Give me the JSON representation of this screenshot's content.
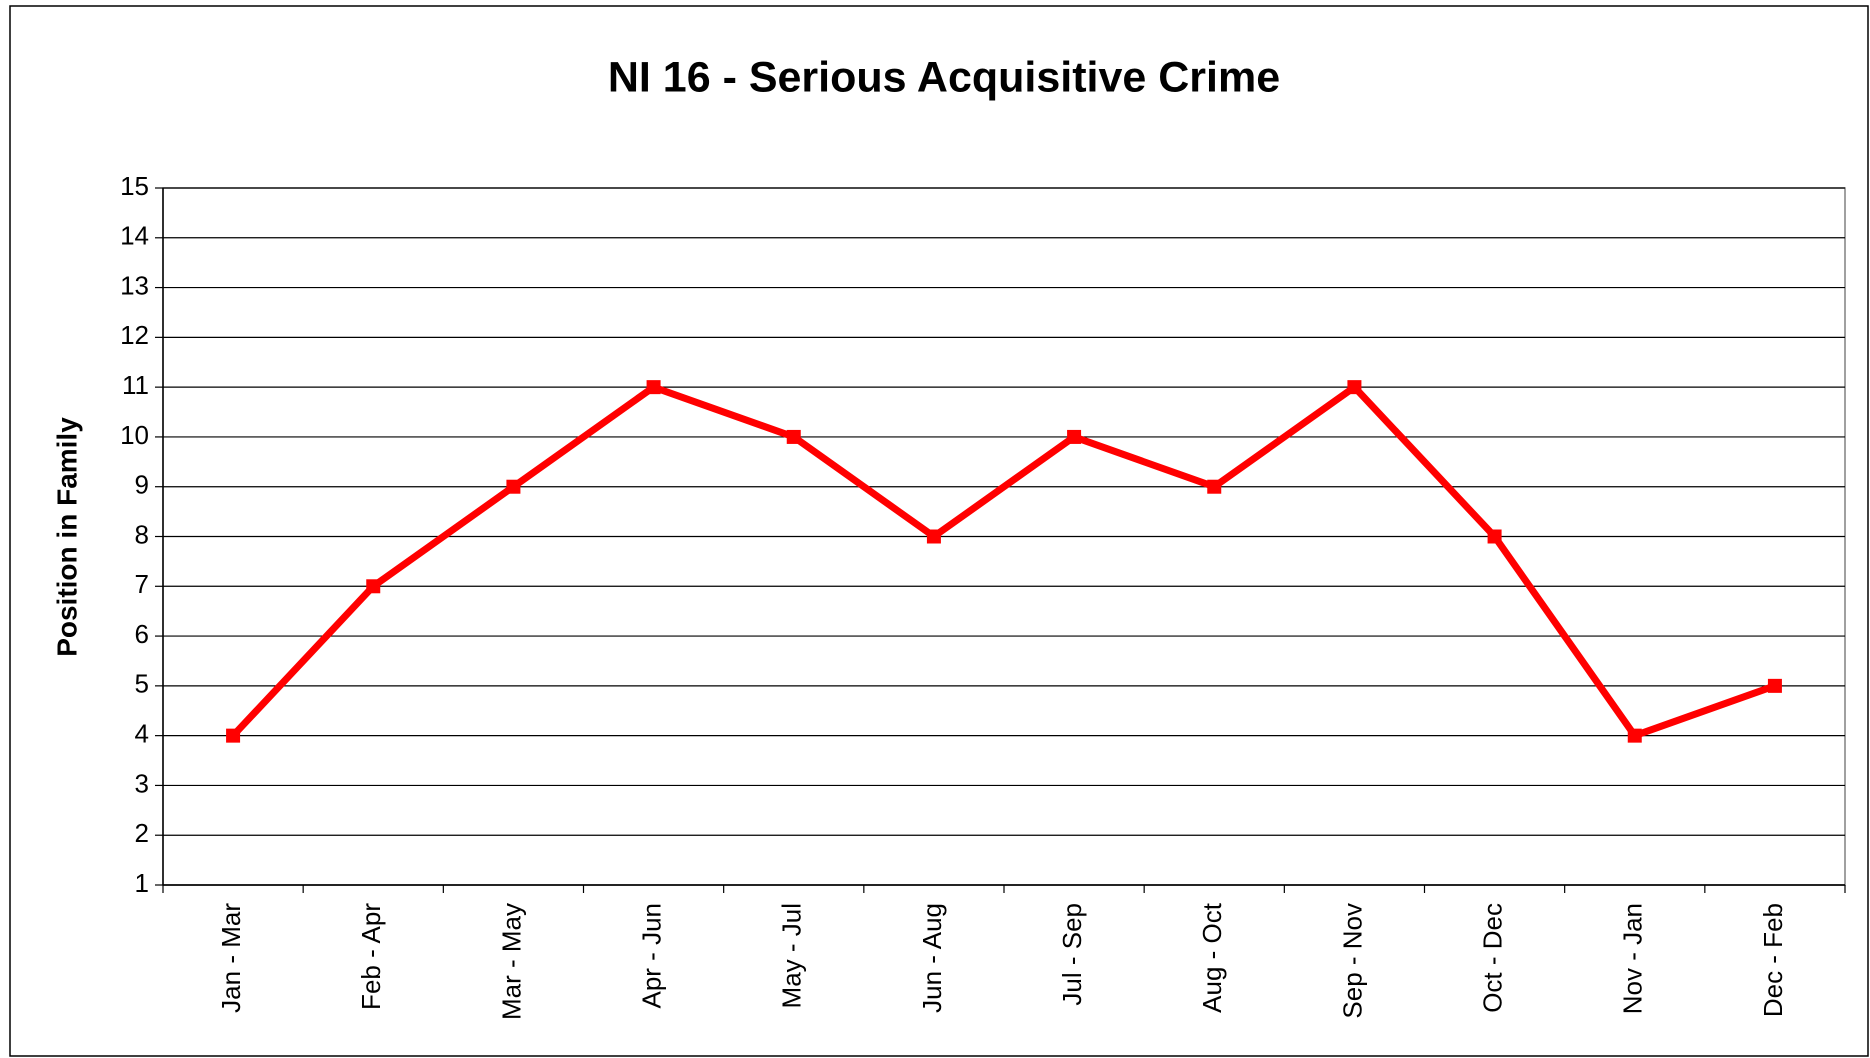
{
  "chart_data": {
    "type": "line",
    "title": "NI 16 - Serious Acquisitive Crime",
    "y_label": "Position in Family",
    "categories": [
      "Jan - Mar",
      "Feb - Apr",
      "Mar - May",
      "Apr - Jun",
      "May - Jul",
      "Jun - Aug",
      "Jul - Sep",
      "Aug - Oct",
      "Sep - Nov",
      "Oct - Dec",
      "Nov - Jan",
      "Dec - Feb"
    ],
    "values": [
      4,
      7,
      9,
      11,
      10,
      8,
      10,
      9,
      11,
      8,
      4,
      5
    ],
    "color": "#ff0000",
    "ylim": [
      1,
      15
    ],
    "yticks": [
      1,
      2,
      3,
      4,
      5,
      6,
      7,
      8,
      9,
      10,
      11,
      12,
      13,
      14,
      15
    ],
    "grid": true
  }
}
